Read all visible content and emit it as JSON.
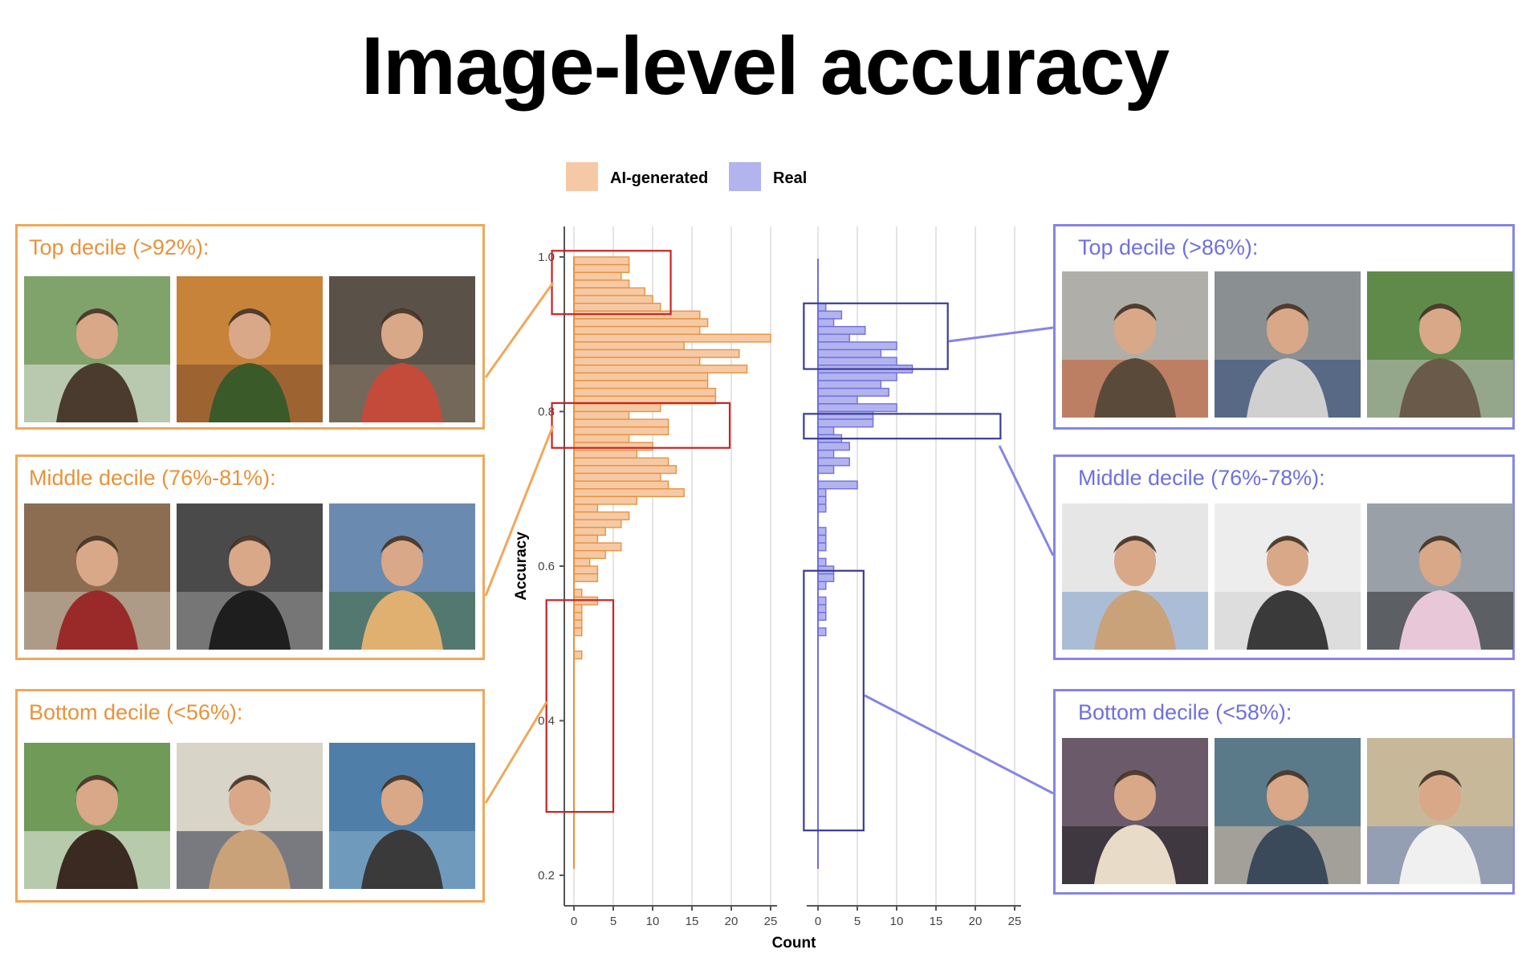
{
  "title": "Image-level accuracy",
  "colors": {
    "ai": "#e8923a",
    "ai_fill": "#f6c9a6",
    "real": "#6f6fe0",
    "real_fill": "#b3b3ee",
    "ai_box": "#cc2222",
    "real_box": "#3a3a9a"
  },
  "panels": {
    "ai": [
      {
        "label": "Top decile (>92%):",
        "thumbs": [
          "wedding-photo",
          "picnic-photo",
          "plumber-photo"
        ]
      },
      {
        "label": "Middle decile (76%-81%):",
        "thumbs": [
          "football-family-photo",
          "vintage-family-photo",
          "violinist-photo"
        ]
      },
      {
        "label": "Bottom decile (<56%):",
        "thumbs": [
          "young-man-photo",
          "businesswoman-photo",
          "woman-waterfront-photo"
        ]
      }
    ],
    "real": [
      {
        "label": "Top decile (>86%):",
        "thumbs": [
          "window-women-photo",
          "worker-street-photo",
          "couple-railing-photo"
        ]
      },
      {
        "label": "Middle decile (76%-78%):",
        "thumbs": [
          "astronaut-family-photo",
          "chefs-photo",
          "wedding-cake-photo"
        ]
      },
      {
        "label": "Bottom decile (<58%):",
        "thumbs": [
          "woman-beanie-photo",
          "baby-water-photo",
          "woman-headscarf-photo"
        ]
      }
    ]
  },
  "chart_data": {
    "type": "bar",
    "orientation": "horizontal",
    "ylabel": "Accuracy",
    "xlabel": "Count",
    "ylim": [
      0.2,
      1.0
    ],
    "yticks": [
      "0.2",
      "0.4",
      "0.6",
      "0.8",
      "1.0"
    ],
    "xticks": [
      "0",
      "5",
      "10",
      "15",
      "20",
      "25"
    ],
    "xlim": [
      0,
      25
    ],
    "legend": {
      "placement": "top",
      "entries": [
        "AI-generated",
        "Real"
      ]
    },
    "grid": "vertical",
    "bin_width": 0.01,
    "series": [
      {
        "name": "AI-generated",
        "bins": [
          [
            0.99,
            7
          ],
          [
            0.98,
            7
          ],
          [
            0.97,
            6
          ],
          [
            0.96,
            7
          ],
          [
            0.95,
            9
          ],
          [
            0.94,
            10
          ],
          [
            0.93,
            11
          ],
          [
            0.92,
            16
          ],
          [
            0.91,
            17
          ],
          [
            0.9,
            16
          ],
          [
            0.89,
            25
          ],
          [
            0.88,
            14
          ],
          [
            0.87,
            21
          ],
          [
            0.86,
            16
          ],
          [
            0.85,
            22
          ],
          [
            0.84,
            17
          ],
          [
            0.83,
            17
          ],
          [
            0.82,
            18
          ],
          [
            0.81,
            18
          ],
          [
            0.8,
            11
          ],
          [
            0.79,
            7
          ],
          [
            0.78,
            12
          ],
          [
            0.77,
            12
          ],
          [
            0.76,
            7
          ],
          [
            0.75,
            10
          ],
          [
            0.74,
            8
          ],
          [
            0.73,
            12
          ],
          [
            0.72,
            13
          ],
          [
            0.71,
            11
          ],
          [
            0.7,
            12
          ],
          [
            0.69,
            14
          ],
          [
            0.68,
            8
          ],
          [
            0.67,
            3
          ],
          [
            0.66,
            7
          ],
          [
            0.65,
            6
          ],
          [
            0.64,
            4
          ],
          [
            0.63,
            3
          ],
          [
            0.62,
            6
          ],
          [
            0.61,
            4
          ],
          [
            0.6,
            2
          ],
          [
            0.59,
            3
          ],
          [
            0.58,
            3
          ],
          [
            0.56,
            1
          ],
          [
            0.55,
            3
          ],
          [
            0.54,
            1
          ],
          [
            0.53,
            1
          ],
          [
            0.52,
            1
          ],
          [
            0.51,
            1
          ],
          [
            0.48,
            1
          ]
        ]
      },
      {
        "name": "Real",
        "bins": [
          [
            0.93,
            1
          ],
          [
            0.92,
            3
          ],
          [
            0.91,
            2
          ],
          [
            0.9,
            6
          ],
          [
            0.89,
            4
          ],
          [
            0.88,
            10
          ],
          [
            0.87,
            8
          ],
          [
            0.86,
            10
          ],
          [
            0.85,
            12
          ],
          [
            0.84,
            10
          ],
          [
            0.83,
            8
          ],
          [
            0.82,
            9
          ],
          [
            0.81,
            5
          ],
          [
            0.8,
            10
          ],
          [
            0.79,
            7
          ],
          [
            0.78,
            7
          ],
          [
            0.77,
            2
          ],
          [
            0.76,
            3
          ],
          [
            0.75,
            4
          ],
          [
            0.74,
            2
          ],
          [
            0.73,
            4
          ],
          [
            0.72,
            2
          ],
          [
            0.7,
            5
          ],
          [
            0.69,
            1
          ],
          [
            0.68,
            1
          ],
          [
            0.67,
            1
          ],
          [
            0.64,
            1
          ],
          [
            0.63,
            1
          ],
          [
            0.62,
            1
          ],
          [
            0.6,
            1
          ],
          [
            0.59,
            2
          ],
          [
            0.58,
            2
          ],
          [
            0.57,
            1
          ],
          [
            0.55,
            1
          ],
          [
            0.54,
            1
          ],
          [
            0.53,
            1
          ],
          [
            0.51,
            1
          ]
        ]
      }
    ]
  }
}
